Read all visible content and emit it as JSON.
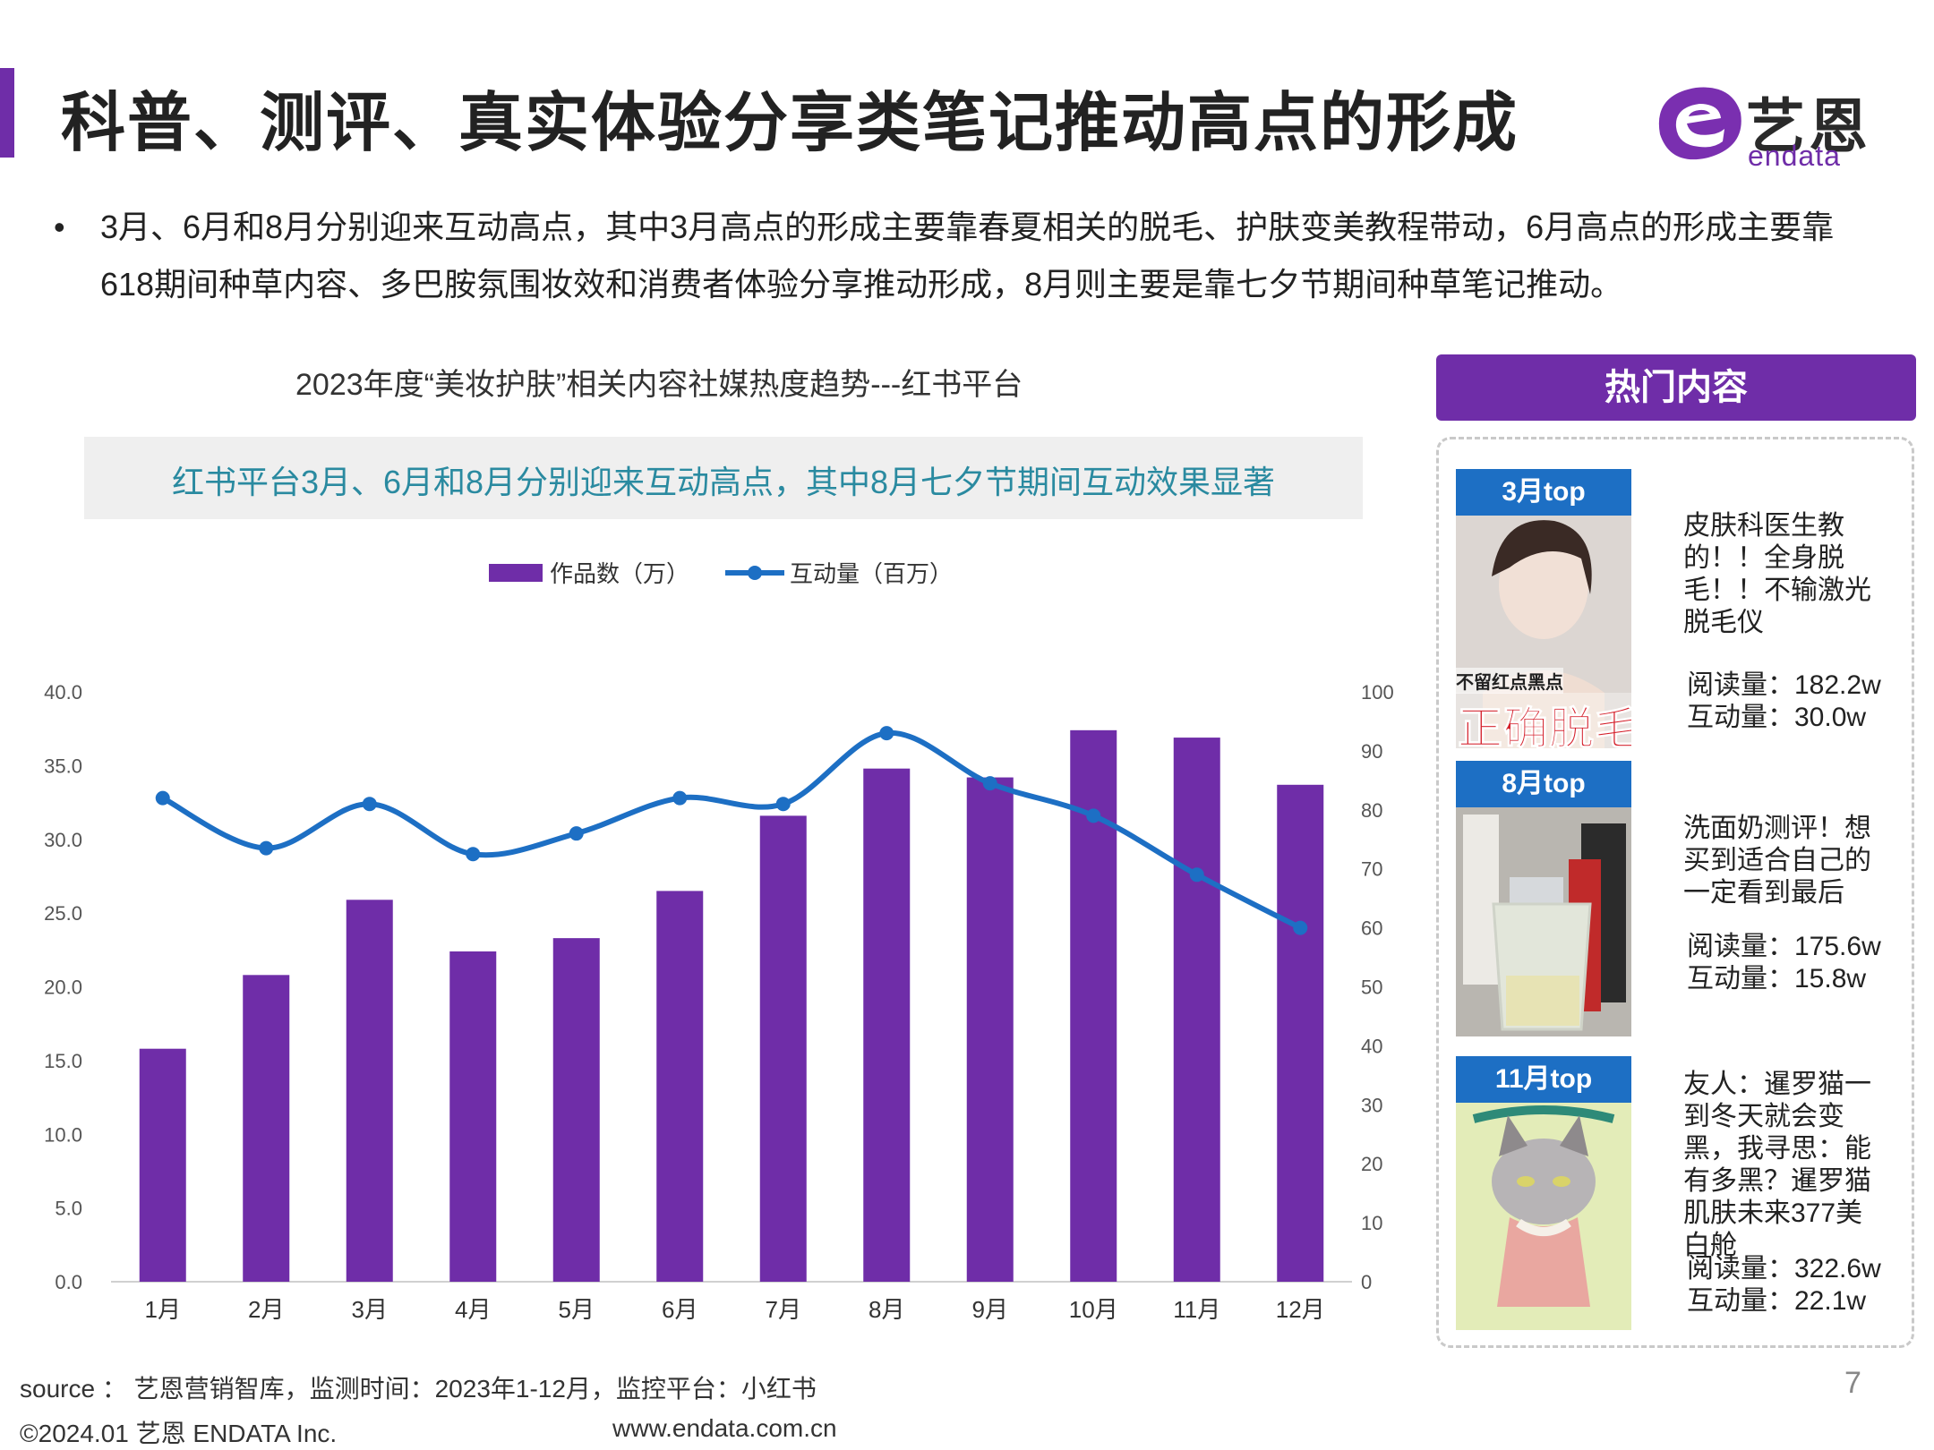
{
  "header": {
    "title": "科普、测评、真实体验分享类笔记推动高点的形成",
    "logo_text": "艺恩",
    "logo_sub": "endata"
  },
  "bullet": "3月、6月和8月分别迎来互动高点，其中3月高点的形成主要靠春夏相关的脱毛、护肤变美教程带动，6月高点的形成主要靠618期间种草内容、多巴胺氛围妆效和消费者体验分享推动形成，8月则主要是靠七夕节期间种草笔记推动。",
  "chart_title": "2023年度“美妆护肤”相关内容社媒热度趋势---红书平台",
  "chart_subtitle": "红书平台3月、6月和8月分别迎来互动高点，其中8月七夕节期间互动效果显著",
  "chart_data": {
    "type": "bar",
    "categories": [
      "1月",
      "2月",
      "3月",
      "4月",
      "5月",
      "6月",
      "7月",
      "8月",
      "9月",
      "10月",
      "11月",
      "12月"
    ],
    "series": [
      {
        "name": "作品数（万）",
        "type": "bar",
        "axis": "left",
        "color": "#6f2da8",
        "values": [
          15.8,
          20.8,
          25.9,
          22.4,
          23.3,
          26.5,
          31.6,
          34.8,
          34.2,
          37.4,
          36.9,
          33.7
        ]
      },
      {
        "name": "互动量（百万）",
        "type": "line",
        "axis": "right",
        "color": "#1d6fc4",
        "values": [
          82,
          73.5,
          81,
          72.5,
          76,
          82,
          81,
          93,
          84.5,
          79,
          69,
          60
        ]
      }
    ],
    "y_left": {
      "min": 0,
      "max": 40,
      "step": 5,
      "ticks": [
        "0.0",
        "5.0",
        "10.0",
        "15.0",
        "20.0",
        "25.0",
        "30.0",
        "35.0",
        "40.0"
      ]
    },
    "y_right": {
      "min": 0,
      "max": 100,
      "step": 10,
      "ticks": [
        "0",
        "10",
        "20",
        "30",
        "40",
        "50",
        "60",
        "70",
        "80",
        "90",
        "100"
      ]
    },
    "legend": "top-center",
    "grid": false
  },
  "panel": {
    "header": "热门内容",
    "cards": [
      {
        "tag": "3月top",
        "desc": "皮肤科医生教的！！全身脱毛！！不输激光脱毛仪",
        "reads": "阅读量：182.2w",
        "interactions": "互动量：30.0w",
        "overlay_small": "不留红点黑点",
        "overlay_big": "正确脱毛"
      },
      {
        "tag": "8月top",
        "desc": "洗面奶测评！想买到适合自己的一定看到最后",
        "reads": "阅读量：175.6w",
        "interactions": "互动量：15.8w"
      },
      {
        "tag": "11月top",
        "desc": "友人：暹罗猫一到冬天就会变黑，我寻思：能有多黑？暹罗猫 肌肤未来377美白舱",
        "reads": "阅读量：322.6w",
        "interactions": "互动量：22.1w"
      }
    ]
  },
  "footer": {
    "source": "source ： 艺恩营销智库，监测时间：2023年1-12月，监控平台：小红书",
    "page": "7",
    "copyright": "©2024.01  艺恩 ENDATA Inc.",
    "url": "www.endata.com.cn"
  }
}
